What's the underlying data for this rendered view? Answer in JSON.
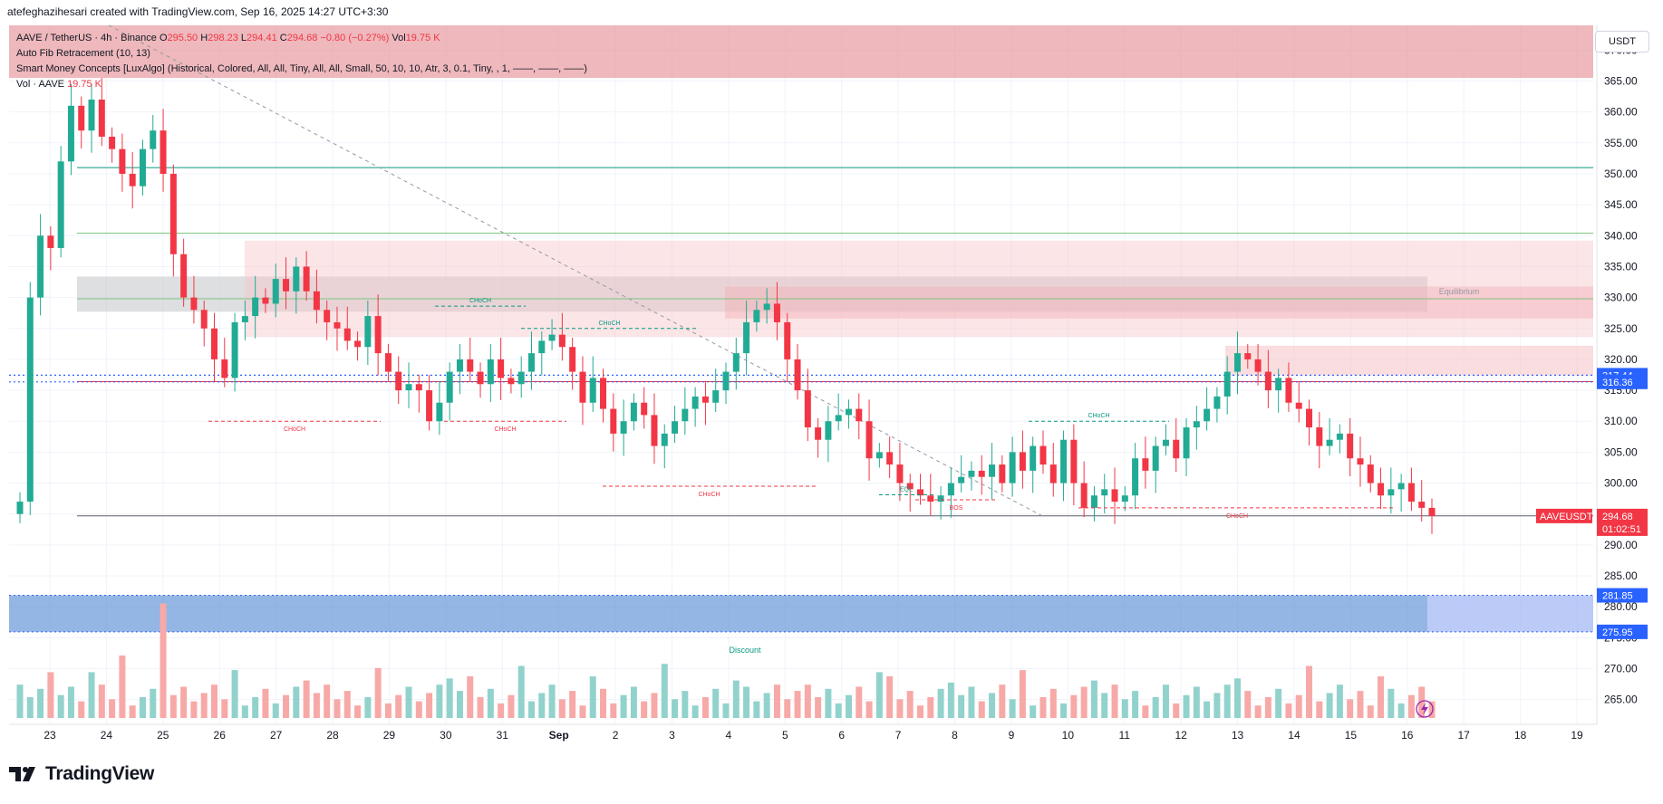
{
  "credit": "atefeghazihesari created with TradingView.com, Sep 16, 2025 14:27 UTC+3:30",
  "brand": "TradingView",
  "currency": "USDT",
  "legend": {
    "symbol": "AAVE / TetherUS · 4h · Binance",
    "o_label": "O",
    "o": "295.50",
    "h_label": "H",
    "h": "298.23",
    "l_label": "L",
    "l": "294.41",
    "c_label": "C",
    "c": "294.68",
    "change": "−0.80 (−0.27%)",
    "vol_label": "Vol",
    "vol": "19.75 K",
    "fib": "Auto Fib Retracement (10, 13)",
    "smc": "Smart Money Concepts [LuxAlgo] (Historical, Colored, All, All, Tiny, All, All, Small, 50, 10, 10, Atr, 3, 0.1, Tiny, , 1, ——, ——, ——)",
    "vol_line_label": "Vol · AAVE",
    "vol_line_value": "19.75 K"
  },
  "colors": {
    "up": "#22ab94",
    "down": "#f23645",
    "up_vol": "#92d2cc",
    "down_vol": "#f7a9a7",
    "grid": "#f0f3fa",
    "axis_text": "#131722",
    "blue_zone": "#5b8fd6",
    "blue_label": "#2962ff"
  },
  "chart_data": {
    "type": "candlestick",
    "symbol": "AAVEUSDT",
    "timeframe": "4h",
    "ylim": [
      261,
      374
    ],
    "y_ticks": [
      265,
      270,
      275,
      280,
      285,
      290,
      295,
      300,
      305,
      310,
      315,
      320,
      325,
      330,
      335,
      340,
      345,
      350,
      355,
      360,
      365,
      370
    ],
    "x_ticks": [
      "23",
      "24",
      "25",
      "26",
      "27",
      "28",
      "29",
      "30",
      "31",
      "Sep",
      "2",
      "3",
      "4",
      "5",
      "6",
      "7",
      "8",
      "9",
      "10",
      "11",
      "12",
      "13",
      "14",
      "15",
      "16",
      "17",
      "18",
      "19"
    ],
    "price_labels": [
      {
        "text": "317.44",
        "value": 317.44,
        "color": "#2962ff"
      },
      {
        "text": "316.36",
        "value": 316.36,
        "color": "#2962ff"
      },
      {
        "text": "281.85",
        "value": 281.85,
        "color": "#2962ff"
      },
      {
        "text": "275.95",
        "value": 275.95,
        "color": "#2962ff"
      }
    ],
    "last_price": {
      "symbol": "AAVEUSDT",
      "price": "294.68",
      "countdown": "01:02:51",
      "value": 294.68
    },
    "closes": [
      297,
      330,
      340,
      338,
      352,
      361,
      357,
      362,
      356,
      354,
      350,
      348,
      354,
      357,
      350,
      337,
      330,
      328,
      325,
      320,
      317,
      326,
      327,
      330,
      329,
      333,
      331,
      335,
      331,
      328,
      326,
      325,
      323,
      322,
      327,
      321,
      318,
      315,
      316,
      315,
      310,
      313,
      318,
      320,
      318,
      316,
      320,
      317,
      316,
      318,
      321,
      323,
      324,
      322,
      318,
      313,
      317,
      312,
      308,
      310,
      313,
      311,
      306,
      308,
      310,
      312,
      314,
      313,
      315,
      318,
      321,
      326,
      328,
      329,
      326,
      320,
      315,
      309,
      307,
      310,
      311,
      312,
      310,
      304,
      305,
      303,
      300,
      299,
      298,
      297,
      298,
      300,
      301,
      302,
      301,
      303,
      300,
      305,
      302,
      306,
      303,
      300,
      307,
      300,
      296,
      298,
      299,
      297,
      298,
      304,
      302,
      306,
      307,
      304,
      309,
      310,
      312,
      314,
      318,
      321,
      320,
      318,
      315,
      317,
      313,
      312,
      309,
      306,
      307,
      308,
      304,
      303,
      300,
      298,
      299,
      300,
      297,
      296,
      294.68
    ],
    "events": [
      {
        "text": "CHoCH",
        "price": 325,
        "color": "#089981"
      },
      {
        "text": "CHoCH",
        "price": 328.6,
        "color": "#089981"
      },
      {
        "text": "CHoCH",
        "price": 310,
        "color": "#f23645"
      },
      {
        "text": "CHoCH",
        "price": 310,
        "color": "#f23645"
      },
      {
        "text": "CHoCH",
        "price": 299.5,
        "color": "#f23645"
      },
      {
        "text": "EQL",
        "price": 298.1,
        "color": "#089981"
      },
      {
        "text": "BOS",
        "price": 297.3,
        "color": "#f23645"
      },
      {
        "text": "CHoCH",
        "price": 310,
        "color": "#089981"
      },
      {
        "text": "CHoCH",
        "price": 296,
        "color": "#f23645"
      }
    ],
    "zones": {
      "equilibrium_label": "Equilibrium",
      "discount_label": "Discount",
      "premium_top": 374,
      "premium_bottom": 365.5,
      "equilibrium_top": 333.4,
      "equilibrium_bottom": 327.7,
      "discount_top": 281.85,
      "discount_bottom": 275.95
    }
  }
}
